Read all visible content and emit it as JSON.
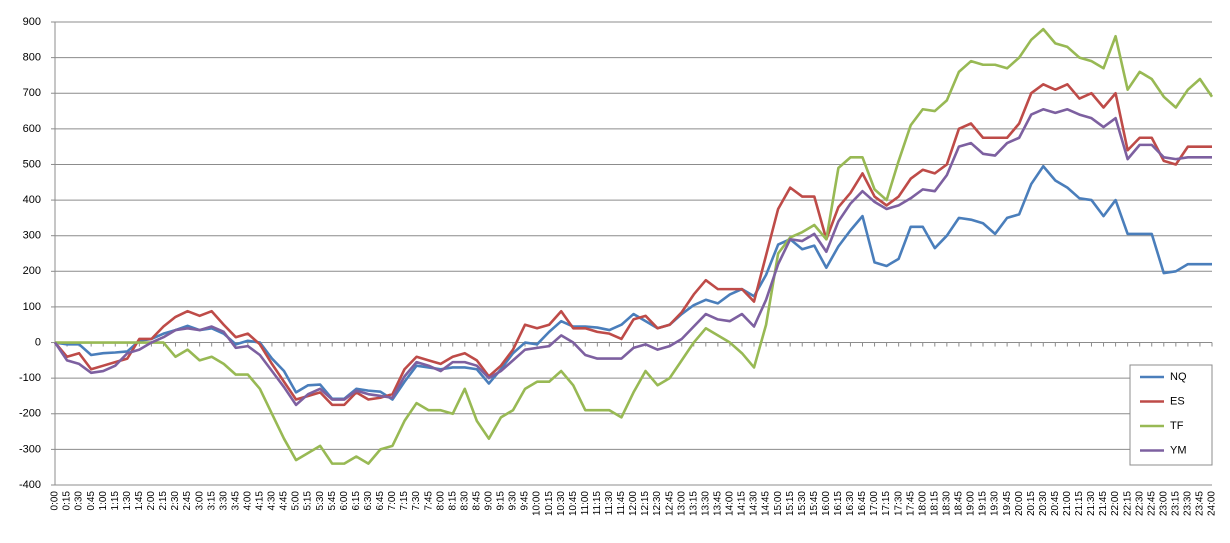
{
  "chart_data": {
    "type": "line",
    "categories": [
      "0:00",
      "0:15",
      "0:30",
      "0:45",
      "1:00",
      "1:15",
      "1:30",
      "1:45",
      "2:00",
      "2:15",
      "2:30",
      "2:45",
      "3:00",
      "3:15",
      "3:30",
      "3:45",
      "4:00",
      "4:15",
      "4:30",
      "4:45",
      "5:00",
      "5:15",
      "5:30",
      "5:45",
      "6:00",
      "6:15",
      "6:30",
      "6:45",
      "7:00",
      "7:15",
      "7:30",
      "7:45",
      "8:00",
      "8:15",
      "8:30",
      "8:45",
      "9:00",
      "9:15",
      "9:30",
      "9:45",
      "10:00",
      "10:15",
      "10:30",
      "10:45",
      "11:00",
      "11:15",
      "11:30",
      "11:45",
      "12:00",
      "12:15",
      "12:30",
      "12:45",
      "13:00",
      "13:15",
      "13:30",
      "13:45",
      "14:00",
      "14:15",
      "14:30",
      "14:45",
      "15:00",
      "15:15",
      "15:30",
      "15:45",
      "16:00",
      "16:15",
      "16:30",
      "16:45",
      "17:00",
      "17:15",
      "17:30",
      "17:45",
      "18:00",
      "18:15",
      "18:30",
      "18:45",
      "19:00",
      "19:15",
      "19:30",
      "19:45",
      "20:00",
      "20:15",
      "20:30",
      "20:45",
      "21:00",
      "21:15",
      "21:30",
      "21:45",
      "22:00",
      "22:15",
      "22:30",
      "22:45",
      "23:00",
      "23:15",
      "23:30",
      "23:45",
      "24:00"
    ],
    "series": [
      {
        "name": "NQ",
        "color": "#4a7ebb",
        "values": [
          0,
          -5,
          -5,
          -35,
          -30,
          -28,
          -25,
          5,
          10,
          25,
          35,
          47,
          35,
          40,
          25,
          -5,
          5,
          0,
          -45,
          -80,
          -140,
          -120,
          -118,
          -158,
          -158,
          -130,
          -135,
          -138,
          -160,
          -110,
          -65,
          -70,
          -75,
          -70,
          -70,
          -75,
          -115,
          -75,
          -30,
          0,
          -5,
          30,
          60,
          45,
          45,
          42,
          35,
          50,
          80,
          60,
          40,
          50,
          80,
          105,
          120,
          110,
          135,
          150,
          130,
          190,
          275,
          290,
          262,
          272,
          210,
          270,
          315,
          355,
          225,
          215,
          235,
          325,
          325,
          265,
          300,
          350,
          345,
          335,
          305,
          350,
          360,
          445,
          495,
          455,
          435,
          405,
          400,
          355,
          400,
          305,
          305,
          305,
          195,
          200,
          220,
          220,
          220
        ]
      },
      {
        "name": "ES",
        "color": "#be4b48",
        "values": [
          0,
          -40,
          -30,
          -75,
          -65,
          -55,
          -45,
          10,
          10,
          45,
          72,
          88,
          75,
          88,
          50,
          15,
          25,
          -5,
          -60,
          -110,
          -160,
          -150,
          -140,
          -175,
          -175,
          -140,
          -160,
          -155,
          -145,
          -75,
          -40,
          -50,
          -60,
          -40,
          -30,
          -50,
          -95,
          -65,
          -20,
          50,
          40,
          50,
          88,
          40,
          40,
          30,
          25,
          10,
          65,
          75,
          40,
          50,
          85,
          135,
          175,
          150,
          150,
          150,
          115,
          245,
          375,
          435,
          410,
          410,
          290,
          380,
          420,
          475,
          410,
          385,
          410,
          460,
          485,
          475,
          500,
          600,
          615,
          575,
          575,
          575,
          615,
          700,
          725,
          710,
          725,
          685,
          700,
          660,
          700,
          540,
          575,
          575,
          510,
          500,
          550,
          550,
          550
        ]
      },
      {
        "name": "TF",
        "color": "#98b954",
        "values": [
          0,
          0,
          0,
          0,
          0,
          0,
          0,
          0,
          0,
          0,
          -40,
          -20,
          -50,
          -40,
          -60,
          -90,
          -90,
          -130,
          -200,
          -270,
          -330,
          -310,
          -290,
          -340,
          -340,
          -320,
          -340,
          -300,
          -290,
          -220,
          -170,
          -190,
          -190,
          -200,
          -130,
          -220,
          -270,
          -210,
          -190,
          -130,
          -110,
          -110,
          -80,
          -120,
          -190,
          -190,
          -190,
          -210,
          -140,
          -80,
          -120,
          -100,
          -50,
          0,
          40,
          20,
          0,
          -30,
          -70,
          50,
          250,
          295,
          310,
          330,
          290,
          490,
          520,
          520,
          430,
          400,
          510,
          610,
          655,
          650,
          680,
          760,
          790,
          780,
          780,
          770,
          800,
          850,
          880,
          840,
          830,
          800,
          790,
          770,
          860,
          710,
          760,
          740,
          690,
          660,
          710,
          740,
          690
        ]
      },
      {
        "name": "YM",
        "color": "#7d60a0",
        "values": [
          0,
          -50,
          -60,
          -85,
          -80,
          -65,
          -30,
          -20,
          0,
          15,
          35,
          40,
          35,
          45,
          30,
          -15,
          -10,
          -35,
          -80,
          -125,
          -175,
          -145,
          -130,
          -160,
          -160,
          -135,
          -145,
          -150,
          -155,
          -95,
          -55,
          -65,
          -80,
          -55,
          -55,
          -65,
          -100,
          -80,
          -50,
          -20,
          -15,
          -10,
          20,
          0,
          -35,
          -45,
          -45,
          -45,
          -15,
          -5,
          -20,
          -10,
          10,
          45,
          80,
          65,
          60,
          80,
          45,
          120,
          220,
          290,
          285,
          305,
          255,
          340,
          390,
          425,
          395,
          375,
          385,
          405,
          430,
          425,
          470,
          550,
          560,
          530,
          525,
          560,
          575,
          640,
          655,
          645,
          655,
          640,
          630,
          605,
          630,
          515,
          555,
          555,
          520,
          515,
          520,
          520,
          520
        ]
      }
    ],
    "ylim": [
      -400,
      900
    ],
    "yticks": [
      -400,
      -300,
      -200,
      -100,
      0,
      100,
      200,
      300,
      400,
      500,
      600,
      700,
      800,
      900
    ],
    "grid": true,
    "legend": "right"
  }
}
